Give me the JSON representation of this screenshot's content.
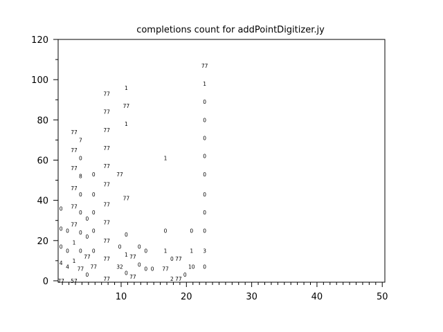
{
  "chart_data": {
    "type": "scatter",
    "title": "completions count for addPointDigitizer.jy",
    "xlabel": "",
    "ylabel": "",
    "xlim": [
      0.35,
      50.4
    ],
    "ylim": [
      -0.7,
      120
    ],
    "xticks": [
      10,
      20,
      30,
      40,
      50
    ],
    "yticks": [
      0,
      20,
      40,
      60,
      80,
      100,
      120
    ],
    "grid": false,
    "marker": "text-label",
    "points": [
      {
        "x": 1,
        "y": 36,
        "label": "0"
      },
      {
        "x": 1,
        "y": 26,
        "label": "0"
      },
      {
        "x": 1,
        "y": 17,
        "label": "0"
      },
      {
        "x": 1,
        "y": 9,
        "label": "4"
      },
      {
        "x": 1,
        "y": 0,
        "label": "77"
      },
      {
        "x": 2,
        "y": 25,
        "label": "0"
      },
      {
        "x": 2,
        "y": 15,
        "label": "0"
      },
      {
        "x": 2,
        "y": 7,
        "label": "4"
      },
      {
        "x": 3,
        "y": 74,
        "label": "77"
      },
      {
        "x": 3,
        "y": 65,
        "label": "77"
      },
      {
        "x": 3,
        "y": 56,
        "label": "77"
      },
      {
        "x": 3,
        "y": 46,
        "label": "77"
      },
      {
        "x": 3,
        "y": 37,
        "label": "77"
      },
      {
        "x": 3,
        "y": 28,
        "label": "77"
      },
      {
        "x": 3,
        "y": 19,
        "label": "1"
      },
      {
        "x": 3,
        "y": 10,
        "label": "1"
      },
      {
        "x": 3,
        "y": 0,
        "label": "57"
      },
      {
        "x": 4,
        "y": 70,
        "label": "7"
      },
      {
        "x": 4,
        "y": 61,
        "label": "0"
      },
      {
        "x": 4,
        "y": 52,
        "label": "8"
      },
      {
        "x": 4,
        "y": 43,
        "label": "0"
      },
      {
        "x": 4,
        "y": 34,
        "label": "0"
      },
      {
        "x": 4,
        "y": 24,
        "label": "0"
      },
      {
        "x": 4,
        "y": 15,
        "label": "0"
      },
      {
        "x": 4,
        "y": 6,
        "label": "77"
      },
      {
        "x": 5,
        "y": 31,
        "label": "0"
      },
      {
        "x": 5,
        "y": 22,
        "label": "0"
      },
      {
        "x": 5,
        "y": 12,
        "label": "77"
      },
      {
        "x": 5,
        "y": 3,
        "label": "0"
      },
      {
        "x": 6,
        "y": 53,
        "label": "0"
      },
      {
        "x": 6,
        "y": 43,
        "label": "0"
      },
      {
        "x": 6,
        "y": 34,
        "label": "0"
      },
      {
        "x": 6,
        "y": 25,
        "label": "0"
      },
      {
        "x": 6,
        "y": 15,
        "label": "0"
      },
      {
        "x": 6,
        "y": 7,
        "label": "77"
      },
      {
        "x": 8,
        "y": 93,
        "label": "77"
      },
      {
        "x": 8,
        "y": 84,
        "label": "77"
      },
      {
        "x": 8,
        "y": 75,
        "label": "77"
      },
      {
        "x": 8,
        "y": 66,
        "label": "77"
      },
      {
        "x": 8,
        "y": 57,
        "label": "77"
      },
      {
        "x": 8,
        "y": 48,
        "label": "77"
      },
      {
        "x": 8,
        "y": 38,
        "label": "77"
      },
      {
        "x": 8,
        "y": 29,
        "label": "77"
      },
      {
        "x": 8,
        "y": 20,
        "label": "77"
      },
      {
        "x": 8,
        "y": 11,
        "label": "77"
      },
      {
        "x": 8,
        "y": 1,
        "label": "77"
      },
      {
        "x": 10,
        "y": 53,
        "label": "77"
      },
      {
        "x": 10,
        "y": 17,
        "label": "0"
      },
      {
        "x": 10,
        "y": 7,
        "label": "32"
      },
      {
        "x": 11,
        "y": 96,
        "label": "1"
      },
      {
        "x": 11,
        "y": 87,
        "label": "77"
      },
      {
        "x": 11,
        "y": 78,
        "label": "1"
      },
      {
        "x": 11,
        "y": 41,
        "label": "77"
      },
      {
        "x": 11,
        "y": 23,
        "label": "0"
      },
      {
        "x": 11,
        "y": 13,
        "label": "1"
      },
      {
        "x": 11,
        "y": 4,
        "label": "0"
      },
      {
        "x": 12,
        "y": 12,
        "label": "77"
      },
      {
        "x": 12,
        "y": 2,
        "label": "77"
      },
      {
        "x": 13,
        "y": 17,
        "label": "0"
      },
      {
        "x": 13,
        "y": 8,
        "label": "0"
      },
      {
        "x": 14,
        "y": 15,
        "label": "0"
      },
      {
        "x": 14,
        "y": 6,
        "label": "0"
      },
      {
        "x": 15,
        "y": 6,
        "label": "0"
      },
      {
        "x": 17,
        "y": 61,
        "label": "1"
      },
      {
        "x": 17,
        "y": 25,
        "label": "0"
      },
      {
        "x": 17,
        "y": 15,
        "label": "1"
      },
      {
        "x": 17,
        "y": 6,
        "label": "77"
      },
      {
        "x": 18,
        "y": 11,
        "label": "0"
      },
      {
        "x": 18,
        "y": 1,
        "label": "2"
      },
      {
        "x": 19,
        "y": 11,
        "label": "77"
      },
      {
        "x": 19,
        "y": 1,
        "label": "77"
      },
      {
        "x": 20,
        "y": 3,
        "label": "0"
      },
      {
        "x": 21,
        "y": 25,
        "label": "0"
      },
      {
        "x": 21,
        "y": 15,
        "label": "1"
      },
      {
        "x": 21,
        "y": 7,
        "label": "10"
      },
      {
        "x": 23,
        "y": 107,
        "label": "77"
      },
      {
        "x": 23,
        "y": 98,
        "label": "1"
      },
      {
        "x": 23,
        "y": 89,
        "label": "0"
      },
      {
        "x": 23,
        "y": 80,
        "label": "0"
      },
      {
        "x": 23,
        "y": 71,
        "label": "0"
      },
      {
        "x": 23,
        "y": 62,
        "label": "0"
      },
      {
        "x": 23,
        "y": 53,
        "label": "0"
      },
      {
        "x": 23,
        "y": 43,
        "label": "0"
      },
      {
        "x": 23,
        "y": 34,
        "label": "0"
      },
      {
        "x": 23,
        "y": 25,
        "label": "0"
      },
      {
        "x": 23,
        "y": 15,
        "label": "3"
      },
      {
        "x": 23,
        "y": 7,
        "label": "0"
      }
    ]
  }
}
